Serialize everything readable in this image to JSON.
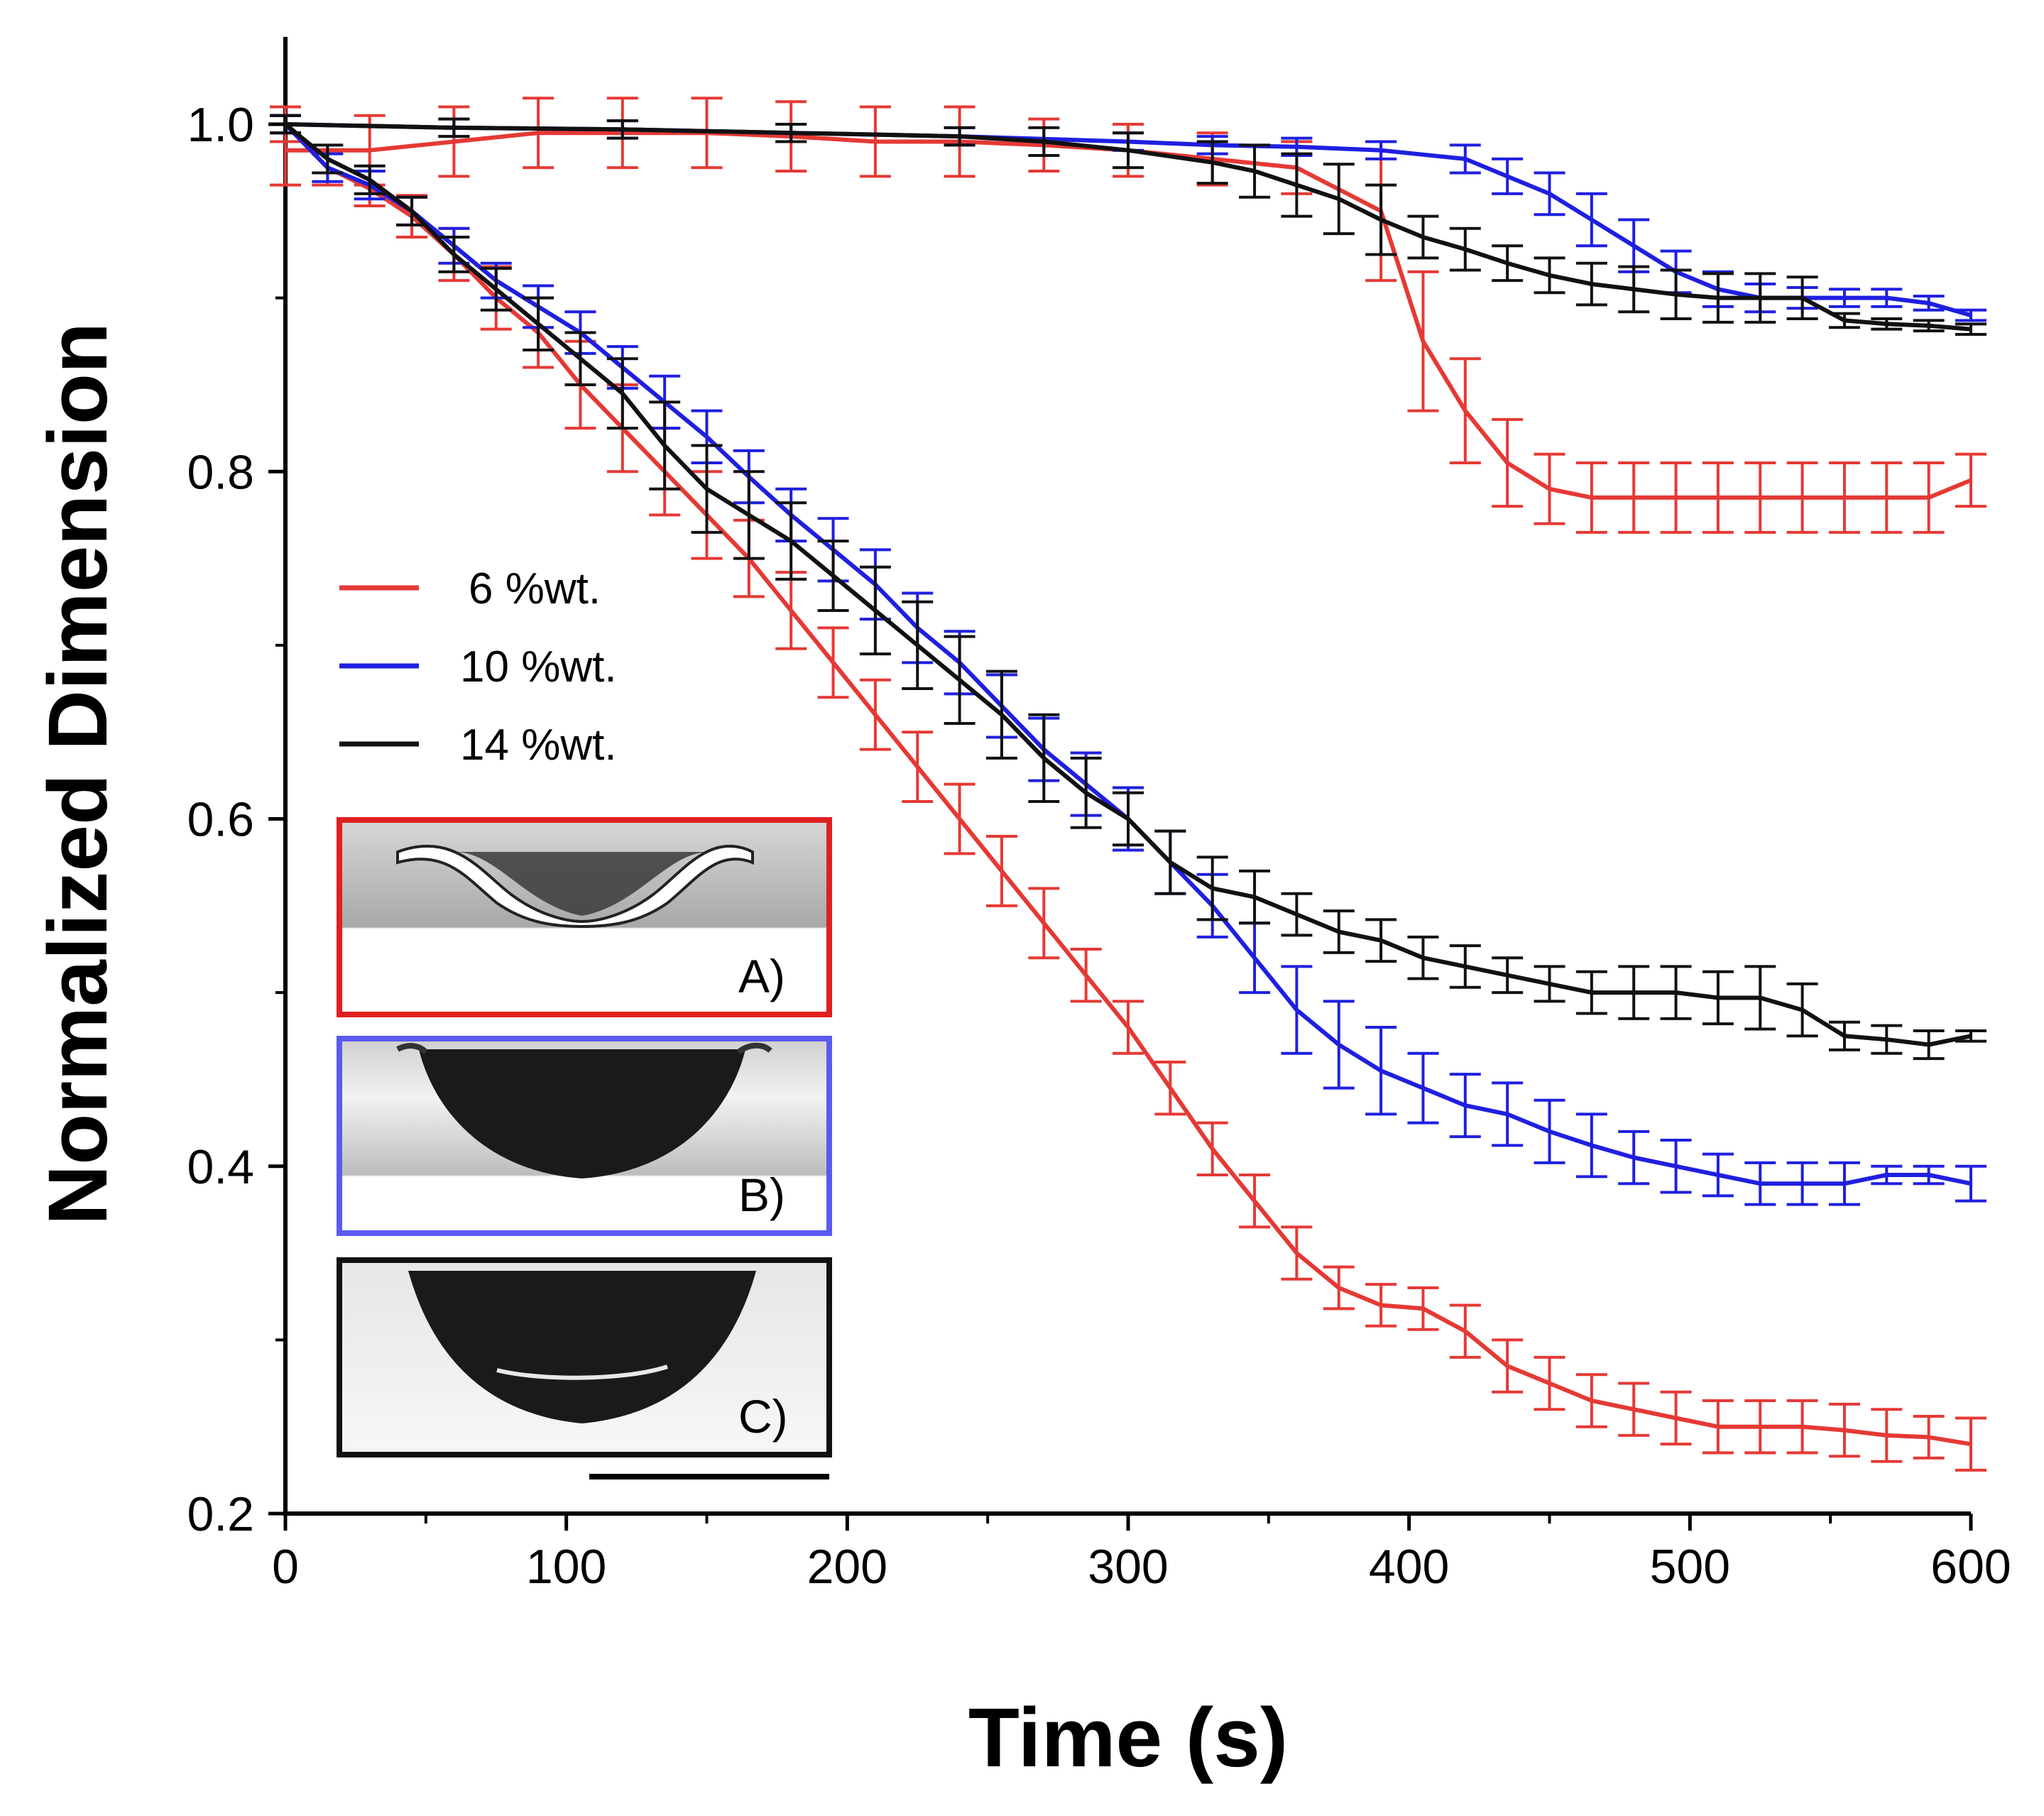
{
  "chart_data": {
    "type": "line",
    "title": "",
    "xlabel": "Time (s)",
    "ylabel": "Normalized Dimension",
    "xlim": [
      0,
      600
    ],
    "ylim": [
      0.2,
      1.05
    ],
    "x_ticks": [
      0,
      100,
      200,
      300,
      400,
      500,
      600
    ],
    "x_tick_labels": [
      "0",
      "100",
      "200",
      "300",
      "400",
      "500",
      "600"
    ],
    "y_ticks": [
      0.2,
      0.4,
      0.6,
      0.8,
      1.0
    ],
    "y_tick_labels": [
      "0.2",
      "0.4",
      "0.6",
      "0.8",
      "1.0"
    ],
    "legend": [
      {
        "label": "6 %wt.",
        "color": "#e53935"
      },
      {
        "label": "10 %wt.",
        "color": "#1f1fe0"
      },
      {
        "label": "14 %wt.",
        "color": "#111111"
      }
    ],
    "series": [
      {
        "name": "6 %wt. (upper)",
        "color": "#e53935",
        "x": [
          0,
          30,
          60,
          90,
          120,
          150,
          180,
          210,
          240,
          270,
          300,
          330,
          360,
          390,
          405,
          420,
          435,
          450,
          465,
          480,
          495,
          510,
          525,
          540,
          555,
          570,
          585,
          600
        ],
        "y": [
          0.985,
          0.985,
          0.99,
          0.995,
          0.995,
          0.995,
          0.993,
          0.99,
          0.99,
          0.988,
          0.985,
          0.98,
          0.975,
          0.95,
          0.875,
          0.835,
          0.805,
          0.79,
          0.785,
          0.785,
          0.785,
          0.785,
          0.785,
          0.785,
          0.785,
          0.785,
          0.785,
          0.795
        ],
        "err": [
          0.02,
          0.02,
          0.02,
          0.02,
          0.02,
          0.02,
          0.02,
          0.02,
          0.02,
          0.015,
          0.015,
          0.015,
          0.015,
          0.04,
          0.04,
          0.03,
          0.025,
          0.02,
          0.02,
          0.02,
          0.02,
          0.02,
          0.02,
          0.02,
          0.02,
          0.02,
          0.02,
          0.015
        ]
      },
      {
        "name": "10 %wt. (upper)",
        "color": "#1f1fe0",
        "x": [
          0,
          60,
          120,
          180,
          240,
          300,
          330,
          360,
          390,
          420,
          435,
          450,
          465,
          480,
          495,
          510,
          525,
          540,
          555,
          570,
          585,
          600
        ],
        "y": [
          1.0,
          0.998,
          0.997,
          0.995,
          0.993,
          0.99,
          0.988,
          0.987,
          0.985,
          0.98,
          0.97,
          0.96,
          0.945,
          0.93,
          0.915,
          0.905,
          0.9,
          0.9,
          0.9,
          0.9,
          0.897,
          0.89
        ],
        "err": [
          0.005,
          0.005,
          0.005,
          0.005,
          0.005,
          0.005,
          0.005,
          0.005,
          0.005,
          0.008,
          0.01,
          0.012,
          0.015,
          0.015,
          0.012,
          0.01,
          0.008,
          0.006,
          0.005,
          0.005,
          0.004,
          0.003
        ]
      },
      {
        "name": "14 %wt. (upper)",
        "color": "#111111",
        "x": [
          0,
          60,
          120,
          180,
          240,
          270,
          300,
          330,
          345,
          360,
          375,
          390,
          405,
          420,
          435,
          450,
          465,
          480,
          495,
          510,
          525,
          540,
          555,
          570,
          585,
          600
        ],
        "y": [
          1.0,
          0.998,
          0.997,
          0.995,
          0.993,
          0.99,
          0.985,
          0.978,
          0.973,
          0.965,
          0.957,
          0.945,
          0.935,
          0.928,
          0.92,
          0.913,
          0.908,
          0.905,
          0.902,
          0.9,
          0.9,
          0.9,
          0.887,
          0.885,
          0.884,
          0.882
        ],
        "err": [
          0.005,
          0.005,
          0.005,
          0.005,
          0.005,
          0.008,
          0.01,
          0.012,
          0.015,
          0.018,
          0.02,
          0.02,
          0.012,
          0.012,
          0.01,
          0.01,
          0.012,
          0.013,
          0.014,
          0.014,
          0.014,
          0.012,
          0.004,
          0.003,
          0.003,
          0.003
        ]
      },
      {
        "name": "6 %wt. (lower)",
        "color": "#e53935",
        "x": [
          0,
          15,
          30,
          45,
          60,
          75,
          90,
          105,
          120,
          135,
          150,
          165,
          180,
          195,
          210,
          225,
          240,
          255,
          270,
          285,
          300,
          315,
          330,
          345,
          360,
          375,
          390,
          405,
          420,
          435,
          450,
          465,
          480,
          495,
          510,
          525,
          540,
          555,
          570,
          585,
          600
        ],
        "y": [
          1.0,
          0.975,
          0.963,
          0.947,
          0.925,
          0.9,
          0.88,
          0.85,
          0.825,
          0.8,
          0.775,
          0.75,
          0.72,
          0.69,
          0.66,
          0.63,
          0.6,
          0.57,
          0.54,
          0.51,
          0.48,
          0.445,
          0.41,
          0.38,
          0.35,
          0.33,
          0.32,
          0.318,
          0.305,
          0.285,
          0.275,
          0.265,
          0.26,
          0.255,
          0.25,
          0.25,
          0.25,
          0.248,
          0.245,
          0.244,
          0.24
        ],
        "err": [
          0.01,
          0.01,
          0.01,
          0.012,
          0.015,
          0.018,
          0.02,
          0.025,
          0.025,
          0.025,
          0.025,
          0.022,
          0.022,
          0.02,
          0.02,
          0.02,
          0.02,
          0.02,
          0.02,
          0.015,
          0.015,
          0.015,
          0.015,
          0.015,
          0.015,
          0.012,
          0.012,
          0.012,
          0.015,
          0.015,
          0.015,
          0.015,
          0.015,
          0.015,
          0.015,
          0.015,
          0.015,
          0.015,
          0.015,
          0.012,
          0.015
        ]
      },
      {
        "name": "10 %wt. (lower)",
        "color": "#1f1fe0",
        "x": [
          0,
          15,
          30,
          45,
          60,
          75,
          90,
          105,
          120,
          135,
          150,
          165,
          180,
          195,
          210,
          225,
          240,
          255,
          270,
          285,
          300,
          315,
          330,
          345,
          360,
          375,
          390,
          405,
          420,
          435,
          450,
          465,
          480,
          495,
          510,
          525,
          540,
          555,
          570,
          585,
          600
        ],
        "y": [
          1.0,
          0.975,
          0.965,
          0.95,
          0.93,
          0.91,
          0.895,
          0.88,
          0.86,
          0.84,
          0.82,
          0.797,
          0.775,
          0.755,
          0.735,
          0.71,
          0.69,
          0.665,
          0.64,
          0.62,
          0.6,
          0.575,
          0.55,
          0.52,
          0.49,
          0.47,
          0.455,
          0.445,
          0.435,
          0.43,
          0.42,
          0.412,
          0.405,
          0.4,
          0.395,
          0.39,
          0.39,
          0.39,
          0.395,
          0.395,
          0.39
        ],
        "err": [
          0.005,
          0.008,
          0.008,
          0.008,
          0.01,
          0.01,
          0.012,
          0.012,
          0.012,
          0.015,
          0.015,
          0.015,
          0.015,
          0.018,
          0.02,
          0.02,
          0.018,
          0.018,
          0.018,
          0.018,
          0.018,
          0.018,
          0.018,
          0.02,
          0.025,
          0.025,
          0.025,
          0.02,
          0.018,
          0.018,
          0.018,
          0.018,
          0.015,
          0.015,
          0.012,
          0.012,
          0.012,
          0.012,
          0.005,
          0.005,
          0.01
        ]
      },
      {
        "name": "14 %wt. (lower)",
        "color": "#111111",
        "x": [
          0,
          15,
          30,
          45,
          60,
          75,
          90,
          105,
          120,
          135,
          150,
          165,
          180,
          195,
          210,
          225,
          240,
          255,
          270,
          285,
          300,
          315,
          330,
          345,
          360,
          375,
          390,
          405,
          420,
          435,
          450,
          465,
          480,
          495,
          510,
          525,
          540,
          555,
          570,
          585,
          600
        ],
        "y": [
          1.0,
          0.98,
          0.968,
          0.95,
          0.925,
          0.905,
          0.885,
          0.865,
          0.845,
          0.815,
          0.79,
          0.775,
          0.76,
          0.74,
          0.72,
          0.7,
          0.68,
          0.66,
          0.635,
          0.615,
          0.6,
          0.575,
          0.56,
          0.555,
          0.545,
          0.535,
          0.53,
          0.52,
          0.515,
          0.51,
          0.505,
          0.5,
          0.5,
          0.5,
          0.497,
          0.497,
          0.49,
          0.475,
          0.473,
          0.47,
          0.475
        ],
        "err": [
          0.005,
          0.008,
          0.008,
          0.008,
          0.01,
          0.012,
          0.015,
          0.015,
          0.02,
          0.025,
          0.025,
          0.025,
          0.022,
          0.02,
          0.025,
          0.025,
          0.025,
          0.025,
          0.025,
          0.02,
          0.015,
          0.018,
          0.018,
          0.015,
          0.012,
          0.012,
          0.012,
          0.012,
          0.012,
          0.01,
          0.01,
          0.012,
          0.015,
          0.015,
          0.015,
          0.018,
          0.015,
          0.008,
          0.008,
          0.008,
          0.003
        ]
      }
    ],
    "insets": [
      {
        "label": "A)",
        "frame_color": "#e02020",
        "drop_fill": "#3a3a3a"
      },
      {
        "label": "B)",
        "frame_color": "#5a5af0",
        "drop_fill": "#1a1a1a"
      },
      {
        "label": "C)",
        "frame_color": "#111111",
        "drop_fill": "#1a1a1a"
      }
    ]
  }
}
